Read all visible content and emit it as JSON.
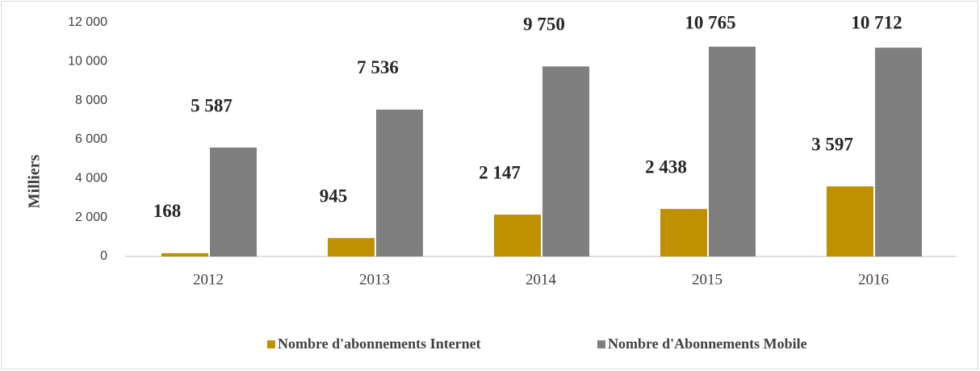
{
  "chart_data": {
    "type": "bar",
    "y_label": "Milliers",
    "categories": [
      "2012",
      "2013",
      "2014",
      "2015",
      "2016"
    ],
    "series": [
      {
        "name": "Nombre d'abonnements Internet",
        "color": "#bf9000",
        "values": [
          168,
          945,
          2147,
          2438,
          3597
        ],
        "value_labels": [
          "168",
          "945",
          "2 147",
          "2 438",
          "3 597"
        ]
      },
      {
        "name": "Nombre d'Abonnements Mobile",
        "color": "#7f7f7f",
        "values": [
          5587,
          7536,
          9750,
          10765,
          10712
        ],
        "value_labels": [
          "5 587",
          "7 536",
          "9 750",
          "10 765",
          "10 712"
        ]
      }
    ],
    "ylim": [
      0,
      12000
    ],
    "yticks": [
      0,
      {
        "value": 2000,
        "label": "2 000"
      },
      {
        "value": 4000,
        "label": "4 000"
      },
      {
        "value": 6000,
        "label": "6 000"
      },
      {
        "value": 8000,
        "label": "8 000"
      },
      {
        "value": 10000,
        "label": "10 000"
      },
      {
        "value": 12000,
        "label": "12 000"
      }
    ],
    "grid": false,
    "legend": "bottom"
  }
}
